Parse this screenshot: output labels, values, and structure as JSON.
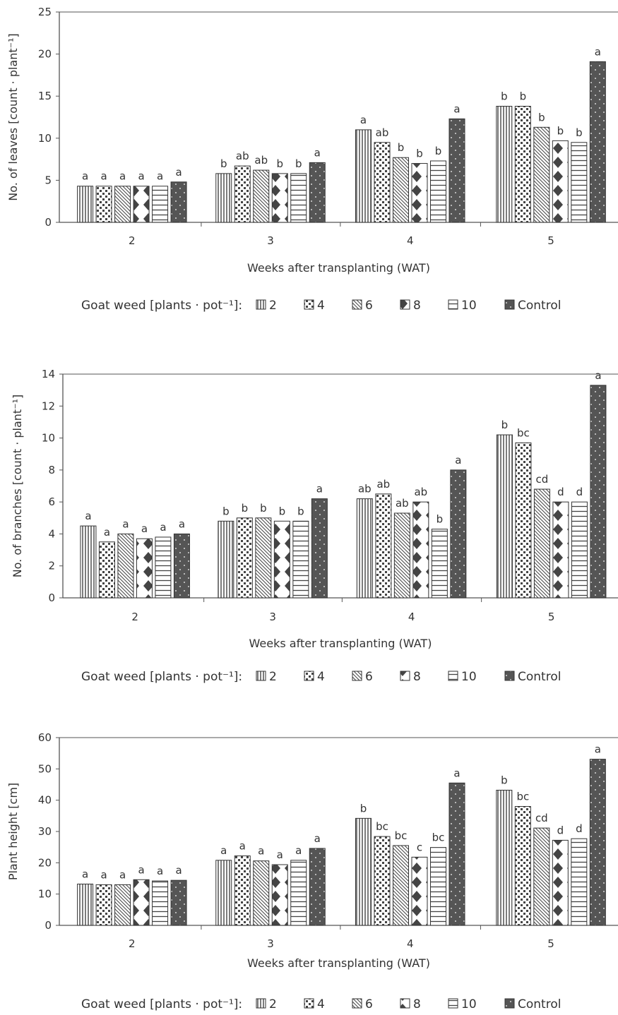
{
  "chart_data": [
    {
      "type": "bar",
      "xlabel": "Weeks after transplanting (WAT)",
      "ylabel": "No. of leaves [count · plant⁻¹]",
      "ylim": [
        0,
        25
      ],
      "yticks": [
        0,
        5,
        10,
        15,
        20,
        25
      ],
      "categories": [
        "2",
        "3",
        "4",
        "5"
      ],
      "legend_title": "Goat weed [plants · pot⁻¹]:",
      "series": [
        {
          "name": "2",
          "pattern": "vlines",
          "values": [
            4.3,
            5.8,
            11.0,
            13.8
          ],
          "letters": [
            "a",
            "b",
            "a",
            "b"
          ]
        },
        {
          "name": "4",
          "pattern": "dots",
          "values": [
            4.3,
            6.7,
            9.5,
            13.8
          ],
          "letters": [
            "a",
            "ab",
            "ab",
            "b"
          ]
        },
        {
          "name": "6",
          "pattern": "diag",
          "values": [
            4.3,
            6.2,
            7.7,
            11.3
          ],
          "letters": [
            "a",
            "ab",
            "b",
            "b"
          ]
        },
        {
          "name": "8",
          "pattern": "diamonds",
          "values": [
            4.3,
            5.8,
            7.0,
            9.7
          ],
          "letters": [
            "a",
            "b",
            "b",
            "b"
          ]
        },
        {
          "name": "10",
          "pattern": "hlines",
          "values": [
            4.3,
            5.8,
            7.3,
            9.5
          ],
          "letters": [
            "a",
            "b",
            "b",
            "b"
          ]
        },
        {
          "name": "Control",
          "pattern": "solid",
          "values": [
            4.8,
            7.1,
            12.3,
            19.1
          ],
          "letters": [
            "a",
            "a",
            "a",
            "a"
          ]
        }
      ]
    },
    {
      "type": "bar",
      "xlabel": "Weeks after transplanting (WAT)",
      "ylabel": "No. of branches [count · plant⁻¹]",
      "ylim": [
        0,
        14
      ],
      "yticks": [
        0,
        2,
        4,
        6,
        8,
        10,
        12,
        14
      ],
      "categories": [
        "2",
        "3",
        "4",
        "5"
      ],
      "legend_title": "Goat weed [plants · pot⁻¹]:",
      "series": [
        {
          "name": "2",
          "pattern": "vlines",
          "values": [
            4.5,
            4.8,
            6.2,
            10.2
          ],
          "letters": [
            "a",
            "b",
            "ab",
            "b"
          ]
        },
        {
          "name": "4",
          "pattern": "dots",
          "values": [
            3.5,
            5.0,
            6.5,
            9.7
          ],
          "letters": [
            "a",
            "b",
            "ab",
            "bc"
          ]
        },
        {
          "name": "6",
          "pattern": "diag",
          "values": [
            4.0,
            5.0,
            5.3,
            6.8
          ],
          "letters": [
            "a",
            "b",
            "ab",
            "cd"
          ]
        },
        {
          "name": "8",
          "pattern": "diamonds",
          "values": [
            3.7,
            4.8,
            6.0,
            6.0
          ],
          "letters": [
            "a",
            "b",
            "ab",
            "d"
          ]
        },
        {
          "name": "10",
          "pattern": "hlines",
          "values": [
            3.8,
            4.8,
            4.3,
            6.0
          ],
          "letters": [
            "a",
            "b",
            "b",
            "d"
          ]
        },
        {
          "name": "Control",
          "pattern": "solid",
          "values": [
            4.0,
            6.2,
            8.0,
            13.3
          ],
          "letters": [
            "a",
            "a",
            "a",
            "a"
          ]
        }
      ]
    },
    {
      "type": "bar",
      "xlabel": "Weeks after transplanting (WAT)",
      "ylabel": "Plant height [cm]",
      "ylim": [
        0,
        60
      ],
      "yticks": [
        0,
        10,
        20,
        30,
        40,
        50,
        60
      ],
      "categories": [
        "2",
        "3",
        "4",
        "5"
      ],
      "legend_title": "Goat weed [plants · pot⁻¹]:",
      "series": [
        {
          "name": "2",
          "pattern": "vlines",
          "values": [
            13.2,
            20.8,
            34.2,
            43.2
          ],
          "letters": [
            "a",
            "a",
            "b",
            "b"
          ]
        },
        {
          "name": "4",
          "pattern": "dots",
          "values": [
            13.0,
            22.2,
            28.4,
            38.0
          ],
          "letters": [
            "a",
            "a",
            "bc",
            "bc"
          ]
        },
        {
          "name": "6",
          "pattern": "diag",
          "values": [
            13.0,
            20.6,
            25.5,
            31.1
          ],
          "letters": [
            "a",
            "a",
            "bc",
            "cd"
          ]
        },
        {
          "name": "8",
          "pattern": "diamonds",
          "values": [
            14.6,
            19.4,
            21.8,
            27.2
          ],
          "letters": [
            "a",
            "a",
            "c",
            "d"
          ]
        },
        {
          "name": "10",
          "pattern": "hlines",
          "values": [
            14.2,
            20.8,
            24.9,
            27.7
          ],
          "letters": [
            "a",
            "a",
            "bc",
            "d"
          ]
        },
        {
          "name": "Control",
          "pattern": "solid",
          "values": [
            14.4,
            24.6,
            45.5,
            53.1
          ],
          "letters": [
            "a",
            "a",
            "a",
            "a"
          ]
        }
      ]
    }
  ],
  "colors": {
    "bar_fill": "#ffffff",
    "bar_outline": "#333333",
    "control": "#555555",
    "axis": "#555555",
    "text": "#333333"
  }
}
